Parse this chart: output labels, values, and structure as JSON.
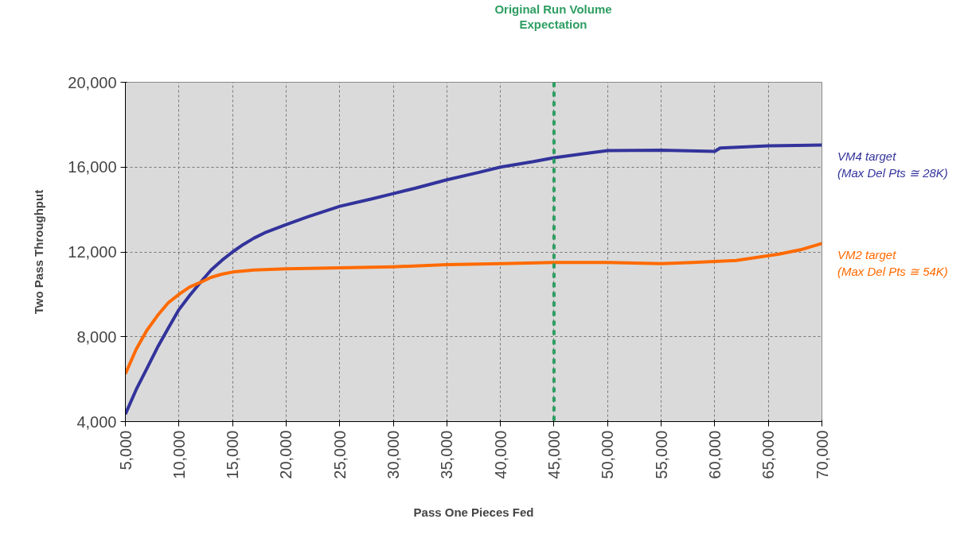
{
  "chart_data": {
    "type": "line",
    "xlabel": "Pass One Pieces Fed",
    "ylabel": "Two Pass Throughput",
    "xlim": [
      5000,
      70000
    ],
    "ylim": [
      4000,
      20000
    ],
    "xticks": [
      {
        "value": 5000,
        "label": "5,000"
      },
      {
        "value": 10000,
        "label": "10,000"
      },
      {
        "value": 15000,
        "label": "15,000"
      },
      {
        "value": 20000,
        "label": "20,000"
      },
      {
        "value": 25000,
        "label": "25,000"
      },
      {
        "value": 30000,
        "label": "30,000"
      },
      {
        "value": 35000,
        "label": "35,000"
      },
      {
        "value": 40000,
        "label": "40,000"
      },
      {
        "value": 45000,
        "label": "45,000"
      },
      {
        "value": 50000,
        "label": "50,000"
      },
      {
        "value": 55000,
        "label": "55,000"
      },
      {
        "value": 60000,
        "label": "60,000"
      },
      {
        "value": 65000,
        "label": "65,000"
      },
      {
        "value": 70000,
        "label": "70,000"
      }
    ],
    "yticks": [
      {
        "value": 4000,
        "label": "4,000"
      },
      {
        "value": 8000,
        "label": "8,000"
      },
      {
        "value": 12000,
        "label": "12,000"
      },
      {
        "value": 16000,
        "label": "16,000"
      },
      {
        "value": 20000,
        "label": "20,000"
      }
    ],
    "grid": true,
    "marker": "none",
    "line_style": "solid",
    "ref_lines": [
      {
        "axis": "x",
        "value": 45000,
        "label": "Original Run Volume Expectation",
        "color": "#2e9e62",
        "line_style": "dashed"
      }
    ],
    "series": [
      {
        "name": "VM4 target (Max Del Pts ≅ 28K)",
        "color": "#33339c",
        "x": [
          5000,
          6000,
          7000,
          8000,
          9000,
          10000,
          11000,
          12000,
          13000,
          14000,
          15000,
          16000,
          17000,
          18000,
          20000,
          22000,
          25000,
          28000,
          30000,
          32000,
          35000,
          38000,
          40000,
          43000,
          45000,
          48000,
          50000,
          55000,
          60000,
          60500,
          65000,
          70000
        ],
        "values": [
          4350,
          5500,
          6500,
          7500,
          8400,
          9280,
          9950,
          10560,
          11150,
          11600,
          12000,
          12350,
          12650,
          12900,
          13290,
          13650,
          14150,
          14500,
          14750,
          15000,
          15400,
          15750,
          16000,
          16250,
          16440,
          16650,
          16780,
          16800,
          16740,
          16900,
          17000,
          17040
        ]
      },
      {
        "name": "VM2 target (Max Del Pts ≅ 54K)",
        "color": "#ff6a00",
        "x": [
          5000,
          6000,
          7000,
          8000,
          9000,
          10000,
          11000,
          12000,
          13000,
          14000,
          15000,
          17000,
          20000,
          25000,
          30000,
          35000,
          40000,
          45000,
          50000,
          55000,
          58000,
          60000,
          62000,
          64000,
          66000,
          68000,
          70000
        ],
        "values": [
          6250,
          7400,
          8300,
          9000,
          9600,
          10000,
          10350,
          10560,
          10800,
          10950,
          11050,
          11150,
          11200,
          11250,
          11300,
          11400,
          11450,
          11500,
          11500,
          11450,
          11500,
          11550,
          11600,
          11750,
          11900,
          12100,
          12400
        ]
      }
    ]
  }
}
